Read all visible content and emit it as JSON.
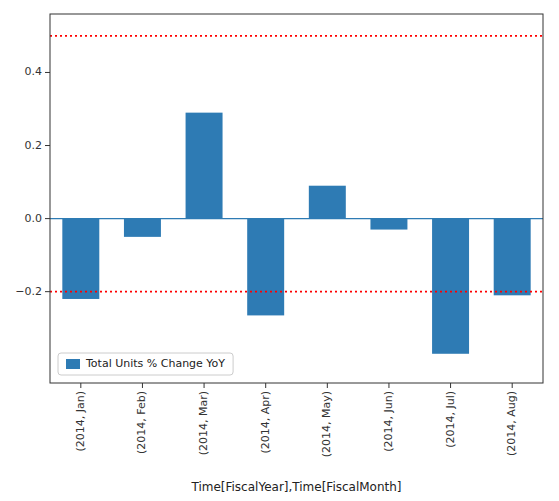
{
  "chart_data": {
    "type": "bar",
    "x_label": "Time[FiscalYear],Time[FiscalMonth]",
    "categories": [
      "(2014, Jan)",
      "(2014, Feb)",
      "(2014, Mar)",
      "(2014, Apr)",
      "(2014, May)",
      "(2014, Jun)",
      "(2014, Jul)",
      "(2014, Aug)"
    ],
    "series": [
      {
        "name": "Total Units % Change YoY",
        "color": "#2e7bb4",
        "values": [
          -0.22,
          -0.05,
          0.29,
          -0.265,
          0.09,
          -0.03,
          -0.37,
          -0.21
        ]
      }
    ],
    "ylim": [
      -0.45,
      0.56
    ],
    "yticks": [
      {
        "value": -0.2,
        "label": "−0.2"
      },
      {
        "value": 0.0,
        "label": "0.0"
      },
      0.2,
      0.4
    ],
    "reference_lines": [
      {
        "value": 0.5,
        "color": "red",
        "line_style": "dotted"
      },
      {
        "value": -0.2,
        "color": "red",
        "line_style": "dotted"
      }
    ],
    "legend": "lower left",
    "grid": false
  }
}
